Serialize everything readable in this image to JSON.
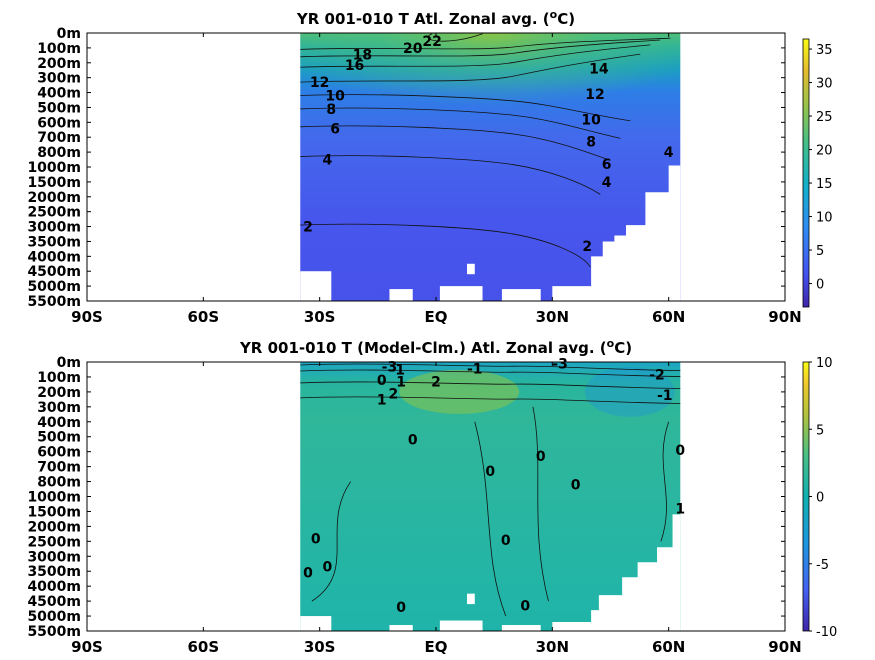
{
  "chart_data": [
    {
      "type": "heatmap",
      "title": "YR 001-010 T Atl. Zonal avg. (",
      "title_super": "o",
      "title_unit": "C)",
      "x_tick_labels": [
        "90S",
        "60S",
        "30S",
        "EQ",
        "30N",
        "60N",
        "90N"
      ],
      "x_tick_values": [
        -90,
        -60,
        -30,
        0,
        30,
        60,
        90
      ],
      "xlim": [
        -90,
        90
      ],
      "y_tick_labels": [
        "0m",
        "100m",
        "200m",
        "300m",
        "400m",
        "500m",
        "600m",
        "700m",
        "800m",
        "1000m",
        "1500m",
        "2000m",
        "2500m",
        "3000m",
        "3500m",
        "4000m",
        "4500m",
        "5000m",
        "5500m"
      ],
      "colorbar": {
        "ticks": [
          "35",
          "30",
          "25",
          "20",
          "15",
          "10",
          "5",
          "0"
        ],
        "tick_values": [
          35,
          30,
          25,
          20,
          15,
          10,
          5,
          0
        ],
        "range": [
          -3.5,
          36.5
        ]
      },
      "data_extent": {
        "lat_min": -35,
        "lat_max": 63
      },
      "contour_labels": [
        {
          "text": "22",
          "lat": -1,
          "depth_index": 0.55
        },
        {
          "text": "20",
          "lat": -6,
          "depth_index": 1.0
        },
        {
          "text": "18",
          "lat": -19,
          "depth_index": 1.45
        },
        {
          "text": "16",
          "lat": -21,
          "depth_index": 2.15
        },
        {
          "text": "12",
          "lat": -30,
          "depth_index": 3.3
        },
        {
          "text": "10",
          "lat": -26,
          "depth_index": 4.2
        },
        {
          "text": "8",
          "lat": -27,
          "depth_index": 5.1
        },
        {
          "text": "6",
          "lat": -26,
          "depth_index": 6.4
        },
        {
          "text": "4",
          "lat": -28,
          "depth_index": 8.5
        },
        {
          "text": "2",
          "lat": -33,
          "depth_index": 13.0
        },
        {
          "text": "2",
          "lat": 39,
          "depth_index": 14.3
        },
        {
          "text": "14",
          "lat": 42,
          "depth_index": 2.4
        },
        {
          "text": "12",
          "lat": 41,
          "depth_index": 4.1
        },
        {
          "text": "10",
          "lat": 40,
          "depth_index": 5.8
        },
        {
          "text": "8",
          "lat": 40,
          "depth_index": 7.3
        },
        {
          "text": "6",
          "lat": 44,
          "depth_index": 8.8
        },
        {
          "text": "4",
          "lat": 44,
          "depth_index": 10.0
        },
        {
          "text": "4",
          "lat": 60,
          "depth_index": 8.0
        }
      ]
    },
    {
      "type": "heatmap",
      "title": "YR 001-010 T (Model-Clm.) Atl. Zonal avg. (",
      "title_super": "o",
      "title_unit": "C)",
      "x_tick_labels": [
        "90S",
        "60S",
        "30S",
        "EQ",
        "30N",
        "60N",
        "90N"
      ],
      "x_tick_values": [
        -90,
        -60,
        -30,
        0,
        30,
        60,
        90
      ],
      "xlim": [
        -90,
        90
      ],
      "y_tick_labels": [
        "0m",
        "100m",
        "200m",
        "300m",
        "400m",
        "500m",
        "600m",
        "700m",
        "800m",
        "1000m",
        "1500m",
        "2000m",
        "2500m",
        "3000m",
        "3500m",
        "4000m",
        "4500m",
        "5000m",
        "5500m"
      ],
      "colorbar": {
        "ticks": [
          "10",
          "5",
          "0",
          "-5",
          "-10"
        ],
        "tick_values": [
          10,
          5,
          0,
          -5,
          -10
        ],
        "range": [
          -10,
          10
        ]
      },
      "data_extent": {
        "lat_min": -35,
        "lat_max": 63
      },
      "contour_labels": [
        {
          "text": "-3",
          "lat": -12,
          "depth_index": 0.3
        },
        {
          "text": "-1",
          "lat": -10,
          "depth_index": 0.5
        },
        {
          "text": "0",
          "lat": -14,
          "depth_index": 1.2
        },
        {
          "text": "1",
          "lat": -9,
          "depth_index": 1.3
        },
        {
          "text": "2",
          "lat": -11,
          "depth_index": 2.1
        },
        {
          "text": "1",
          "lat": -14,
          "depth_index": 2.5
        },
        {
          "text": "2",
          "lat": 0,
          "depth_index": 1.3
        },
        {
          "text": "-1",
          "lat": 10,
          "depth_index": 0.45
        },
        {
          "text": "-3",
          "lat": 32,
          "depth_index": 0.1
        },
        {
          "text": "-2",
          "lat": 57,
          "depth_index": 0.85
        },
        {
          "text": "-1",
          "lat": 59,
          "depth_index": 2.2
        },
        {
          "text": "0",
          "lat": -6,
          "depth_index": 5.2
        },
        {
          "text": "0",
          "lat": 14,
          "depth_index": 7.3
        },
        {
          "text": "0",
          "lat": 27,
          "depth_index": 6.3
        },
        {
          "text": "0",
          "lat": 36,
          "depth_index": 8.2
        },
        {
          "text": "0",
          "lat": 63,
          "depth_index": 5.9
        },
        {
          "text": "1",
          "lat": 63,
          "depth_index": 9.8
        },
        {
          "text": "0",
          "lat": -31,
          "depth_index": 11.8
        },
        {
          "text": "0",
          "lat": 18,
          "depth_index": 11.9
        },
        {
          "text": "0",
          "lat": -33,
          "depth_index": 14.1
        },
        {
          "text": "0",
          "lat": -28,
          "depth_index": 13.7
        },
        {
          "text": "0",
          "lat": -9,
          "depth_index": 16.4
        },
        {
          "text": "0",
          "lat": 23,
          "depth_index": 16.3
        }
      ]
    }
  ]
}
